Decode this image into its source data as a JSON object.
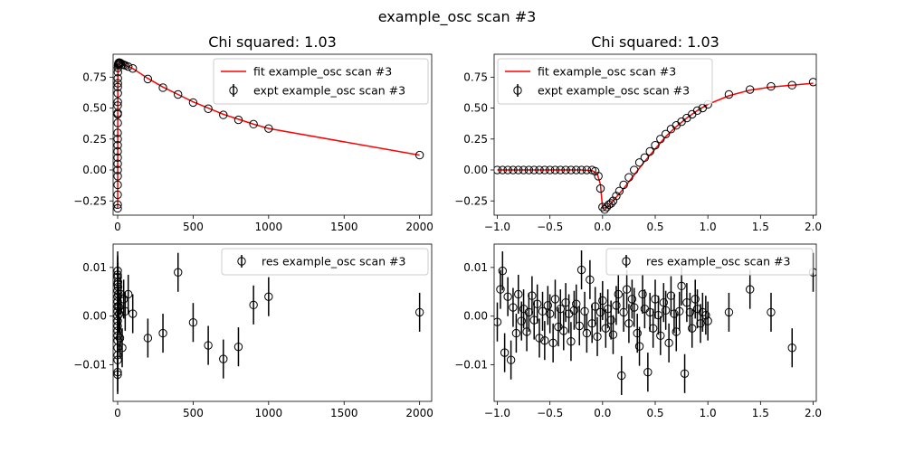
{
  "figure": {
    "suptitle": "example_osc scan #3"
  },
  "colors": {
    "fit": "#ff0000",
    "marker": "#000000",
    "axes": "#000000",
    "background": "#ffffff"
  },
  "chart_data": [
    {
      "id": "fit_long",
      "type": "scatter",
      "title": "Chi squared:  1.03",
      "xlim": [
        -30,
        2080
      ],
      "ylim": [
        -0.365,
        0.935
      ],
      "xticks": [
        0,
        500,
        1000,
        1500,
        2000
      ],
      "xtick_labels": [
        "0",
        "500",
        "1000",
        "1500",
        "2000"
      ],
      "yticks": [
        -0.25,
        0,
        0.25,
        0.5,
        0.75
      ],
      "ytick_labels": [
        "−0.25",
        "0.00",
        "0.25",
        "0.50",
        "0.75"
      ],
      "legend": {
        "placement": "upper-right",
        "entries": [
          "fit example_osc scan #3",
          "expt example_osc scan #3"
        ]
      },
      "series": [
        {
          "name": "fit example_osc scan #3",
          "kind": "line",
          "x": [
            0,
            0.1,
            0.2,
            0.3,
            0.5,
            0.7,
            1,
            1.5,
            2,
            3,
            5,
            7,
            10,
            15,
            20,
            30,
            50,
            70,
            100,
            200,
            300,
            400,
            500,
            600,
            700,
            800,
            900,
            1000,
            2000
          ],
          "y": [
            -0.31,
            -0.2,
            -0.05,
            0.1,
            0.38,
            0.55,
            0.7,
            0.79,
            0.825,
            0.845,
            0.86,
            0.865,
            0.868,
            0.866,
            0.862,
            0.855,
            0.845,
            0.835,
            0.82,
            0.74,
            0.67,
            0.61,
            0.55,
            0.5,
            0.45,
            0.41,
            0.37,
            0.335,
            0.12
          ]
        },
        {
          "name": "expt example_osc scan #3",
          "kind": "points",
          "x": [
            0,
            0,
            0,
            0,
            0,
            0,
            0.05,
            0.1,
            0.15,
            0.2,
            0.25,
            0.3,
            0.35,
            0.4,
            0.5,
            0.6,
            0.7,
            0.8,
            0.9,
            1,
            1.2,
            1.5,
            2,
            3,
            4,
            5,
            7,
            10,
            15,
            20,
            30,
            40,
            50,
            70,
            100,
            200,
            300,
            400,
            500,
            600,
            700,
            800,
            900,
            1000,
            2000
          ],
          "y": [
            -0.31,
            0.0,
            0.15,
            0.3,
            0.45,
            0.52,
            -0.28,
            -0.2,
            -0.12,
            -0.05,
            0.05,
            0.1,
            0.2,
            0.25,
            0.38,
            0.46,
            0.55,
            0.62,
            0.67,
            0.7,
            0.74,
            0.79,
            0.825,
            0.845,
            0.855,
            0.86,
            0.865,
            0.868,
            0.866,
            0.862,
            0.855,
            0.85,
            0.845,
            0.835,
            0.82,
            0.735,
            0.665,
            0.61,
            0.545,
            0.495,
            0.445,
            0.405,
            0.37,
            0.335,
            0.12
          ]
        }
      ]
    },
    {
      "id": "fit_short",
      "type": "scatter",
      "title": "Chi squared:  1.03",
      "xlim": [
        -1.03,
        2.03
      ],
      "ylim": [
        -0.365,
        0.935
      ],
      "xticks": [
        -1,
        -0.5,
        0,
        0.5,
        1,
        1.5,
        2
      ],
      "xtick_labels": [
        "−1.0",
        "−0.5",
        "0.0",
        "0.5",
        "1.0",
        "1.5",
        "2.0"
      ],
      "yticks": [
        -0.25,
        0,
        0.25,
        0.5,
        0.75
      ],
      "ytick_labels": [
        "−0.25",
        "0.00",
        "0.25",
        "0.50",
        "0.75"
      ],
      "legend": {
        "placement": "upper-left",
        "entries": [
          "fit example_osc scan #3",
          "expt example_osc scan #3"
        ]
      },
      "series": [
        {
          "name": "fit example_osc scan #3",
          "kind": "line",
          "x": [
            -1.0,
            -0.5,
            -0.2,
            -0.1,
            -0.05,
            -0.02,
            0,
            0.05,
            0.1,
            0.2,
            0.3,
            0.4,
            0.5,
            0.6,
            0.7,
            0.8,
            0.9,
            1.0,
            1.2,
            1.4,
            1.6,
            1.8,
            2.0
          ],
          "y": [
            0,
            0,
            0,
            -0.005,
            -0.03,
            -0.12,
            -0.31,
            -0.3,
            -0.25,
            -0.15,
            -0.04,
            0.07,
            0.17,
            0.27,
            0.35,
            0.42,
            0.48,
            0.53,
            0.6,
            0.645,
            0.67,
            0.685,
            0.7
          ]
        },
        {
          "name": "expt example_osc scan #3",
          "kind": "points",
          "x": [
            -1.0,
            -0.95,
            -0.9,
            -0.85,
            -0.8,
            -0.75,
            -0.7,
            -0.65,
            -0.6,
            -0.55,
            -0.5,
            -0.45,
            -0.4,
            -0.35,
            -0.3,
            -0.25,
            -0.2,
            -0.15,
            -0.1,
            -0.07,
            -0.04,
            -0.02,
            0,
            0.02,
            0.04,
            0.06,
            0.08,
            0.1,
            0.13,
            0.16,
            0.2,
            0.25,
            0.3,
            0.35,
            0.4,
            0.45,
            0.5,
            0.55,
            0.6,
            0.65,
            0.7,
            0.75,
            0.8,
            0.85,
            0.9,
            0.95,
            1.0,
            1.2,
            1.4,
            1.6,
            1.8,
            2.0
          ],
          "y": [
            0,
            0,
            0,
            0,
            0,
            0,
            0,
            0,
            0,
            0,
            0,
            0,
            0,
            0,
            0,
            0,
            0,
            0,
            0,
            -0.01,
            -0.05,
            -0.15,
            -0.3,
            -0.32,
            -0.3,
            -0.28,
            -0.27,
            -0.25,
            -0.21,
            -0.17,
            -0.12,
            -0.06,
            0.0,
            0.06,
            0.1,
            0.15,
            0.2,
            0.25,
            0.29,
            0.33,
            0.36,
            0.39,
            0.42,
            0.45,
            0.48,
            0.5,
            0.53,
            0.61,
            0.65,
            0.675,
            0.685,
            0.71
          ]
        }
      ]
    },
    {
      "id": "res_long",
      "type": "scatter",
      "title": "",
      "xlim": [
        -30,
        2080
      ],
      "ylim": [
        -0.0175,
        0.0148
      ],
      "xticks": [
        0,
        500,
        1000,
        1500,
        2000
      ],
      "xtick_labels": [
        "0",
        "500",
        "1000",
        "1500",
        "2000"
      ],
      "yticks": [
        -0.01,
        0,
        0.01
      ],
      "ytick_labels": [
        "−0.01",
        "0.00",
        "0.01"
      ],
      "legend": {
        "placement": "upper-right",
        "entries": [
          "res example_osc scan #3"
        ]
      },
      "series": [
        {
          "name": "res example_osc scan #3",
          "kind": "errorbar",
          "err": 0.004,
          "x": [
            0,
            0,
            0,
            0,
            0,
            0,
            0,
            0,
            0,
            0,
            0,
            0,
            0,
            0,
            0,
            0,
            0,
            0,
            0,
            0,
            2,
            3,
            5,
            7,
            10,
            15,
            20,
            30,
            40,
            50,
            70,
            100,
            200,
            300,
            400,
            500,
            600,
            700,
            800,
            900,
            1000,
            2000
          ],
          "y": [
            0.0093,
            0.008,
            0.0065,
            0.0052,
            0.004,
            0.003,
            0.002,
            0.001,
            0.0,
            -0.001,
            -0.002,
            -0.003,
            -0.004,
            -0.005,
            -0.0065,
            -0.008,
            -0.009,
            -0.0115,
            -0.012,
            0.0085,
            0.007,
            0.006,
            0.0045,
            0.002,
            0.0005,
            -0.0045,
            0.0045,
            -0.0065,
            0.0035,
            0.001,
            0.0045,
            0.0005,
            -0.0045,
            -0.0035,
            0.009,
            -0.0013,
            -0.006,
            -0.0088,
            -0.0063,
            0.0023,
            0.004,
            0.0008
          ]
        }
      ]
    },
    {
      "id": "res_short",
      "type": "scatter",
      "title": "",
      "xlim": [
        -1.03,
        2.03
      ],
      "ylim": [
        -0.0175,
        0.0148
      ],
      "xticks": [
        -1,
        -0.5,
        0,
        0.5,
        1,
        1.5,
        2
      ],
      "xtick_labels": [
        "−1.0",
        "−0.5",
        "0.0",
        "0.5",
        "1.0",
        "1.5",
        "2.0"
      ],
      "yticks": [
        -0.01,
        0,
        0.01
      ],
      "ytick_labels": [
        "−0.01",
        "0.00",
        "0.01"
      ],
      "legend": {
        "placement": "upper-right",
        "entries": [
          "res example_osc scan #3"
        ]
      },
      "series": [
        {
          "name": "res example_osc scan #3",
          "kind": "errorbar",
          "err": 0.004,
          "x": [
            -1.0,
            -0.97,
            -0.95,
            -0.93,
            -0.9,
            -0.87,
            -0.85,
            -0.82,
            -0.8,
            -0.77,
            -0.75,
            -0.72,
            -0.7,
            -0.67,
            -0.65,
            -0.62,
            -0.6,
            -0.57,
            -0.55,
            -0.52,
            -0.5,
            -0.47,
            -0.45,
            -0.42,
            -0.4,
            -0.37,
            -0.35,
            -0.32,
            -0.3,
            -0.27,
            -0.25,
            -0.22,
            -0.2,
            -0.17,
            -0.15,
            -0.12,
            -0.1,
            -0.07,
            -0.05,
            -0.02,
            0.0,
            0.03,
            0.05,
            0.08,
            0.1,
            0.13,
            0.15,
            0.18,
            0.2,
            0.23,
            0.25,
            0.28,
            0.3,
            0.33,
            0.35,
            0.38,
            0.4,
            0.43,
            0.45,
            0.48,
            0.5,
            0.53,
            0.55,
            0.58,
            0.6,
            0.63,
            0.65,
            0.68,
            0.7,
            0.73,
            0.75,
            0.78,
            0.8,
            0.83,
            0.85,
            0.88,
            0.9,
            0.93,
            0.95,
            0.98,
            1.0,
            1.2,
            1.4,
            1.6,
            1.8,
            2.0
          ],
          "y": [
            -0.0012,
            0.0055,
            0.0093,
            -0.0075,
            0.004,
            -0.009,
            0.0018,
            -0.0035,
            0.0045,
            -0.001,
            0.0015,
            -0.0032,
            0.0008,
            0.0042,
            -0.0008,
            0.0025,
            -0.0045,
            0.001,
            -0.005,
            0.0022,
            0.0005,
            -0.0055,
            0.0035,
            -0.0022,
            0.0015,
            -0.003,
            0.0028,
            0.0005,
            -0.0052,
            0.0012,
            0.0025,
            -0.002,
            0.0095,
            0.001,
            -0.0035,
            0.0075,
            -0.0015,
            0.002,
            -0.0042,
            0.0008,
            0.0032,
            -0.0025,
            0.0015,
            -0.0008,
            -0.0038,
            0.0022,
            0.0045,
            -0.0122,
            0.0008,
            0.0055,
            -0.0015,
            0.0035,
            0.0018,
            -0.0035,
            -0.0062,
            0.0045,
            0.0015,
            -0.0115,
            0.0008,
            -0.0025,
            0.0035,
            0.0002,
            -0.004,
            0.0028,
            0.0012,
            -0.0055,
            0.0042,
            0.0005,
            -0.0032,
            0.001,
            0.0062,
            -0.0118,
            0.0028,
            0.0008,
            -0.0025,
            0.0035,
            0.0015,
            -0.0015,
            0.0008,
            0.0002,
            -0.001,
            0.0008,
            0.0055,
            0.0008,
            -0.0065,
            0.009
          ]
        }
      ]
    }
  ]
}
